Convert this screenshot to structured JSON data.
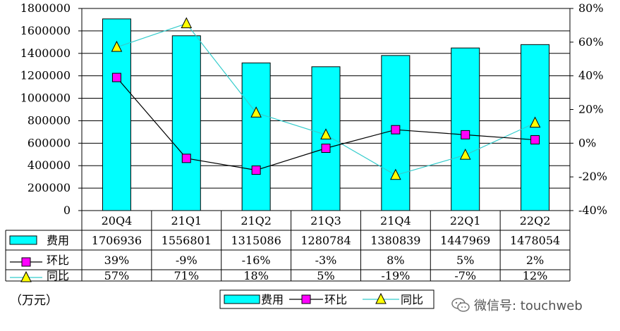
{
  "chart_data": {
    "type": "bar",
    "categories": [
      "20Q4",
      "21Q1",
      "21Q2",
      "21Q3",
      "21Q4",
      "22Q1",
      "22Q2"
    ],
    "series": [
      {
        "name": "费用",
        "type": "bar",
        "axis": "left",
        "color": "#00FFFF",
        "values": [
          1706936,
          1556801,
          1315086,
          1280784,
          1380839,
          1447969,
          1478054
        ],
        "table_values": [
          "1706936",
          "1556801",
          "1315086",
          "1280784",
          "1380839",
          "1447969",
          "1478054"
        ]
      },
      {
        "name": "环比",
        "type": "line",
        "axis": "right",
        "color": "#FF00FF",
        "line_color": "#000000",
        "marker": "square",
        "values": [
          39,
          -9,
          -16,
          -3,
          8,
          5,
          2
        ],
        "table_values": [
          "39%",
          "-9%",
          "-16%",
          "-3%",
          "8%",
          "5%",
          "2%"
        ]
      },
      {
        "name": "同比",
        "type": "line",
        "axis": "right",
        "color": "#FFFF00",
        "line_color": "#33CCCC",
        "marker": "triangle",
        "values": [
          57,
          71,
          18,
          5,
          -19,
          -7,
          12
        ],
        "table_values": [
          "57%",
          "71%",
          "18%",
          "5%",
          "-19%",
          "-7%",
          "12%"
        ]
      }
    ],
    "y_left": {
      "min": 0,
      "max": 1800000,
      "step": 200000,
      "ticks": [
        "0",
        "200000",
        "400000",
        "600000",
        "800000",
        "1000000",
        "1200000",
        "1400000",
        "1600000",
        "1800000"
      ]
    },
    "y_right": {
      "min": -40,
      "max": 80,
      "step": 20,
      "ticks": [
        "-40%",
        "-20%",
        "0%",
        "20%",
        "40%",
        "60%",
        "80%"
      ]
    },
    "grid": true,
    "legend": "bottom-center",
    "unit": "（万元）"
  },
  "watermark": "微信号: touchweb"
}
